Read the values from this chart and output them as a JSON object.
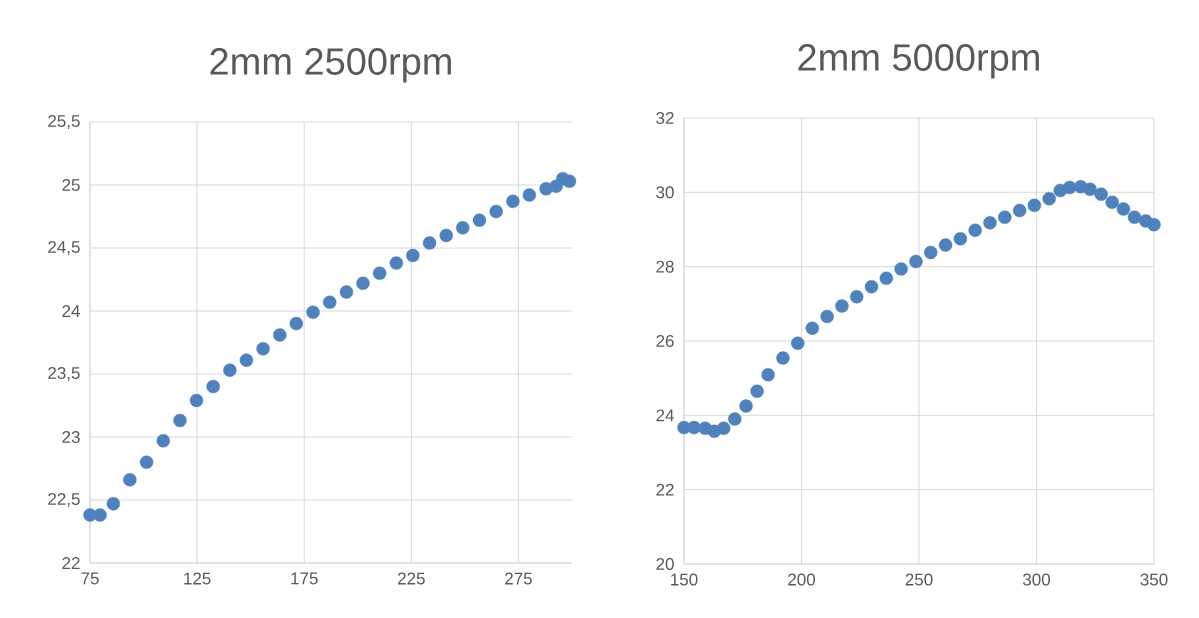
{
  "chart_data": [
    {
      "type": "scatter",
      "title": "2mm 2500rpm",
      "marker": "circle",
      "grid": true,
      "xlim": [
        75,
        300
      ],
      "xticks": [
        75,
        125,
        175,
        225,
        275
      ],
      "ylim": [
        22,
        25.5
      ],
      "yticks": [
        22,
        {
          "value": 22.5,
          "label": "22,5"
        },
        23,
        {
          "value": 23.5,
          "label": "23,5"
        },
        24,
        {
          "value": 24.5,
          "label": "24,5"
        },
        25,
        {
          "value": 25.5,
          "label": "25,5"
        }
      ],
      "series": [
        {
          "color": "#4f81bd",
          "x": [
            75,
            79.7,
            85.9,
            93.6,
            101.4,
            109.2,
            117,
            124.7,
            132.5,
            140.3,
            148,
            155.8,
            163.6,
            171.3,
            179.1,
            186.9,
            194.7,
            202.4,
            210.2,
            218,
            225.7,
            233.5,
            241.3,
            249,
            256.8,
            264.6,
            272.4,
            280.1,
            287.9,
            292.6,
            295.7,
            298.8
          ],
          "values": [
            22.38,
            22.38,
            22.47,
            22.66,
            22.8,
            22.97,
            23.13,
            23.29,
            23.4,
            23.53,
            23.61,
            23.7,
            23.81,
            23.9,
            23.99,
            24.07,
            24.15,
            24.22,
            24.3,
            24.38,
            24.44,
            24.54,
            24.6,
            24.66,
            24.72,
            24.79,
            24.87,
            24.92,
            24.97,
            24.99,
            25.05,
            25.03
          ]
        }
      ]
    },
    {
      "type": "scatter",
      "title": "2mm 5000rpm",
      "marker": "circle",
      "grid": true,
      "xlim": [
        150,
        350
      ],
      "xticks": [
        150,
        200,
        250,
        300,
        350
      ],
      "ylim": [
        20,
        32
      ],
      "yticks": [
        20,
        22,
        24,
        26,
        28,
        30,
        32
      ],
      "series": [
        {
          "color": "#4f81bd",
          "x": [
            150,
            154.3,
            159,
            162.9,
            166.9,
            171.6,
            176.4,
            181.1,
            185.8,
            192.1,
            198.4,
            204.6,
            210.9,
            217.2,
            223.5,
            229.8,
            236.1,
            242.4,
            248.7,
            255,
            261.3,
            267.6,
            273.9,
            280.2,
            286.5,
            292.8,
            299.1,
            305.4,
            310.1,
            314.1,
            318.8,
            322.8,
            327.5,
            332.2,
            337,
            341.7,
            346.5,
            350
          ],
          "values": [
            23.67,
            23.67,
            23.65,
            23.57,
            23.65,
            23.9,
            24.25,
            24.65,
            25.09,
            25.54,
            25.94,
            26.34,
            26.66,
            26.94,
            27.19,
            27.46,
            27.69,
            27.94,
            28.14,
            28.38,
            28.58,
            28.75,
            28.98,
            29.18,
            29.33,
            29.51,
            29.65,
            29.83,
            30.05,
            30.13,
            30.15,
            30.08,
            29.95,
            29.73,
            29.55,
            29.33,
            29.23,
            29.13
          ]
        }
      ]
    }
  ]
}
